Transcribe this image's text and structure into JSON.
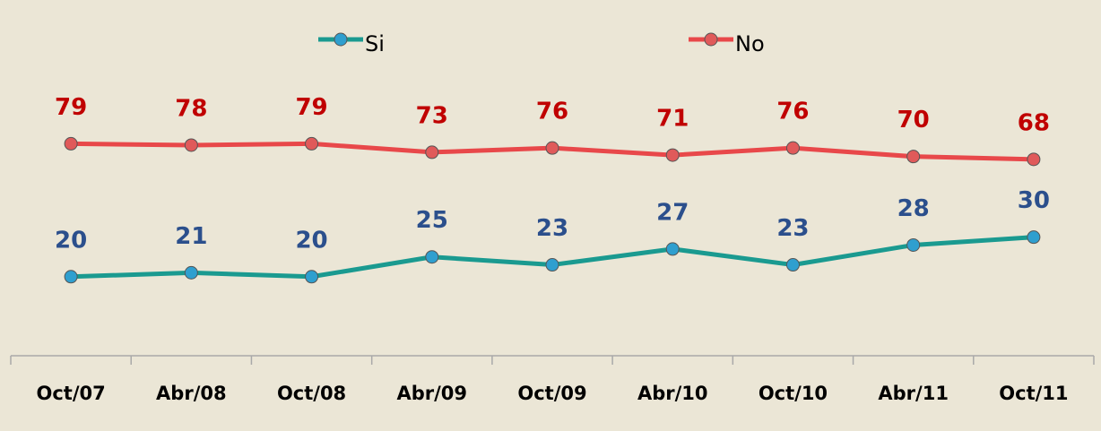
{
  "chart_data": {
    "type": "line",
    "categories": [
      "Oct/07",
      "Abr/08",
      "Oct/08",
      "Abr/09",
      "Oct/09",
      "Abr/10",
      "Oct/10",
      "Abr/11",
      "Oct/11"
    ],
    "series": [
      {
        "name": "Si",
        "color": "#1a9a90",
        "marker_color": "#2f9fcf",
        "label_color": "#2b4f8c",
        "values": [
          20,
          21,
          20,
          25,
          23,
          27,
          23,
          28,
          30
        ]
      },
      {
        "name": "No",
        "color": "#e8484a",
        "marker_color": "#e05a5a",
        "label_color": "#c00000",
        "axis": "y2",
        "values": [
          79,
          78,
          79,
          73,
          76,
          71,
          76,
          70,
          68
        ]
      }
    ],
    "ylim": [
      0,
      90
    ],
    "y2lim": [
      -70,
      180
    ]
  }
}
